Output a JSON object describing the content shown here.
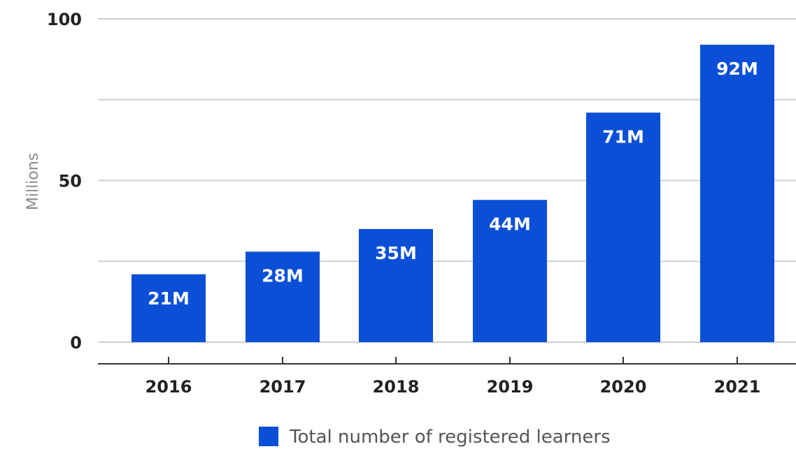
{
  "chart_data": {
    "type": "bar",
    "categories": [
      "2016",
      "2017",
      "2018",
      "2019",
      "2020",
      "2021"
    ],
    "series": [
      {
        "name": "Total number of registered learners",
        "values": [
          21,
          28,
          35,
          44,
          71,
          92
        ],
        "data_labels": [
          "21M",
          "28M",
          "35M",
          "44M",
          "71M",
          "92M"
        ],
        "color": "#0a4fd6"
      }
    ],
    "ylabel": "Millions",
    "xlabel": "",
    "ylim": [
      0,
      100
    ],
    "yticks": [
      0,
      50,
      100
    ],
    "grid": true,
    "legend_position": "bottom-center"
  }
}
